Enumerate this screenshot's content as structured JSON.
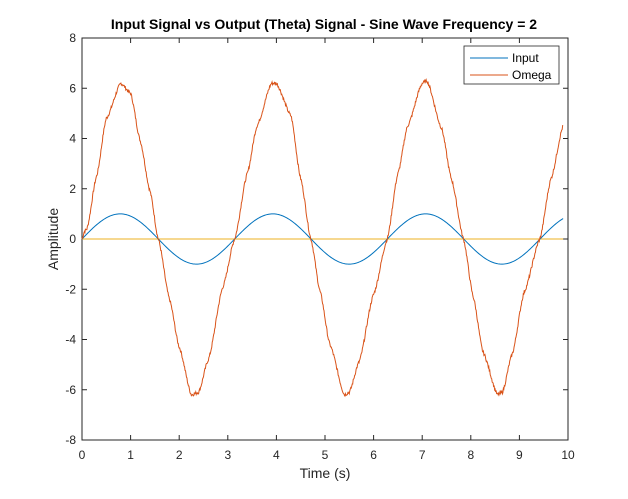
{
  "chart_data": {
    "type": "line",
    "title": "Input Signal vs Output (Theta) Signal - Sine Wave Frequency = 2",
    "xlabel": "Time (s)",
    "ylabel": "Amplitude",
    "xlim": [
      0,
      10
    ],
    "ylim": [
      -8,
      8
    ],
    "x_ticks": [
      "0",
      "1",
      "2",
      "3",
      "4",
      "5",
      "6",
      "7",
      "8",
      "9",
      "10"
    ],
    "y_ticks": [
      "-8",
      "-6",
      "-4",
      "-2",
      "0",
      "2",
      "4",
      "6",
      "8"
    ],
    "grid": false,
    "legend_position": "top-right",
    "t_end": 9.9,
    "colors": {
      "input": "#0072BD",
      "omega": "#D95319",
      "zero_line": "#EDB120",
      "axes": "#262626"
    },
    "series": [
      {
        "name": "Input",
        "description": "y = sin(2t)",
        "x": [
          0,
          0.393,
          0.785,
          1.178,
          1.571,
          1.963,
          2.356,
          2.749,
          3.142,
          3.534,
          3.927,
          4.32,
          4.712,
          5.105,
          5.498,
          5.89,
          6.283,
          6.676,
          7.069,
          7.461,
          7.854,
          8.247,
          8.639,
          9.032,
          9.425,
          9.9
        ],
        "y": [
          0,
          0.707,
          1,
          0.707,
          0,
          -0.707,
          -1,
          -0.707,
          0,
          0.707,
          1,
          0.707,
          0,
          -0.707,
          -1,
          -0.707,
          0,
          0.707,
          1,
          0.707,
          0,
          -0.707,
          -1,
          -0.707,
          0,
          0.808
        ]
      },
      {
        "name": "Omega",
        "x": [
          0,
          0.05,
          0.1,
          0.3,
          0.5,
          0.8,
          1.0,
          1.2,
          1.4,
          1.57,
          1.8,
          2.0,
          2.25,
          2.4,
          2.6,
          2.9,
          3.14,
          3.4,
          3.6,
          3.9,
          4.0,
          4.3,
          4.5,
          4.71,
          4.9,
          5.1,
          5.4,
          5.5,
          5.7,
          6.0,
          6.28,
          6.5,
          6.7,
          7.0,
          7.1,
          7.4,
          7.6,
          7.85,
          8.05,
          8.25,
          8.55,
          8.65,
          8.85,
          9.1,
          9.42,
          9.65,
          9.9
        ],
        "y": [
          0,
          0.3,
          0.4,
          2.5,
          4.8,
          6.2,
          5.8,
          3.9,
          1.9,
          0,
          -2.4,
          -4.3,
          -6.2,
          -6.1,
          -4.8,
          -1.9,
          0,
          2.6,
          4.5,
          6.2,
          6.2,
          4.9,
          2.4,
          0,
          -2.1,
          -4.2,
          -6.2,
          -6.1,
          -4.9,
          -2.2,
          0,
          2.6,
          4.5,
          6.2,
          6.3,
          4.4,
          2.4,
          0,
          -2.3,
          -4.5,
          -6.2,
          -6.1,
          -4.6,
          -2.1,
          0,
          2.4,
          4.5
        ]
      },
      {
        "name": "",
        "description": "zero reference line",
        "x": [
          0,
          9.9
        ],
        "y": [
          0,
          0
        ]
      }
    ]
  }
}
